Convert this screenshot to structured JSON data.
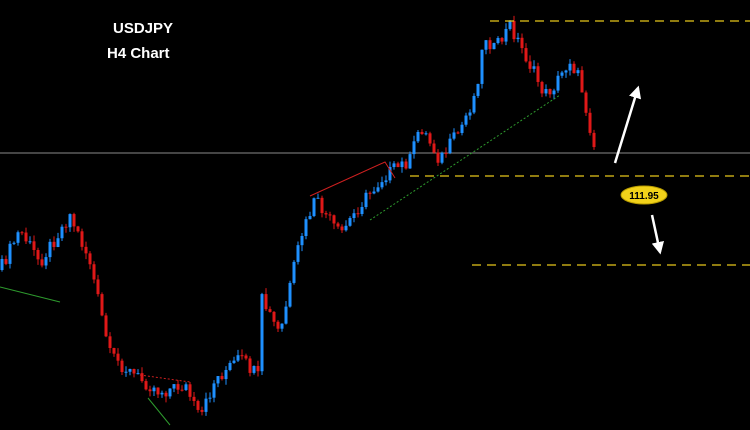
{
  "header": {
    "symbol": "USDJPY",
    "timeframe": "H4 Chart"
  },
  "annotations": {
    "level_label": "111.95"
  }
}
